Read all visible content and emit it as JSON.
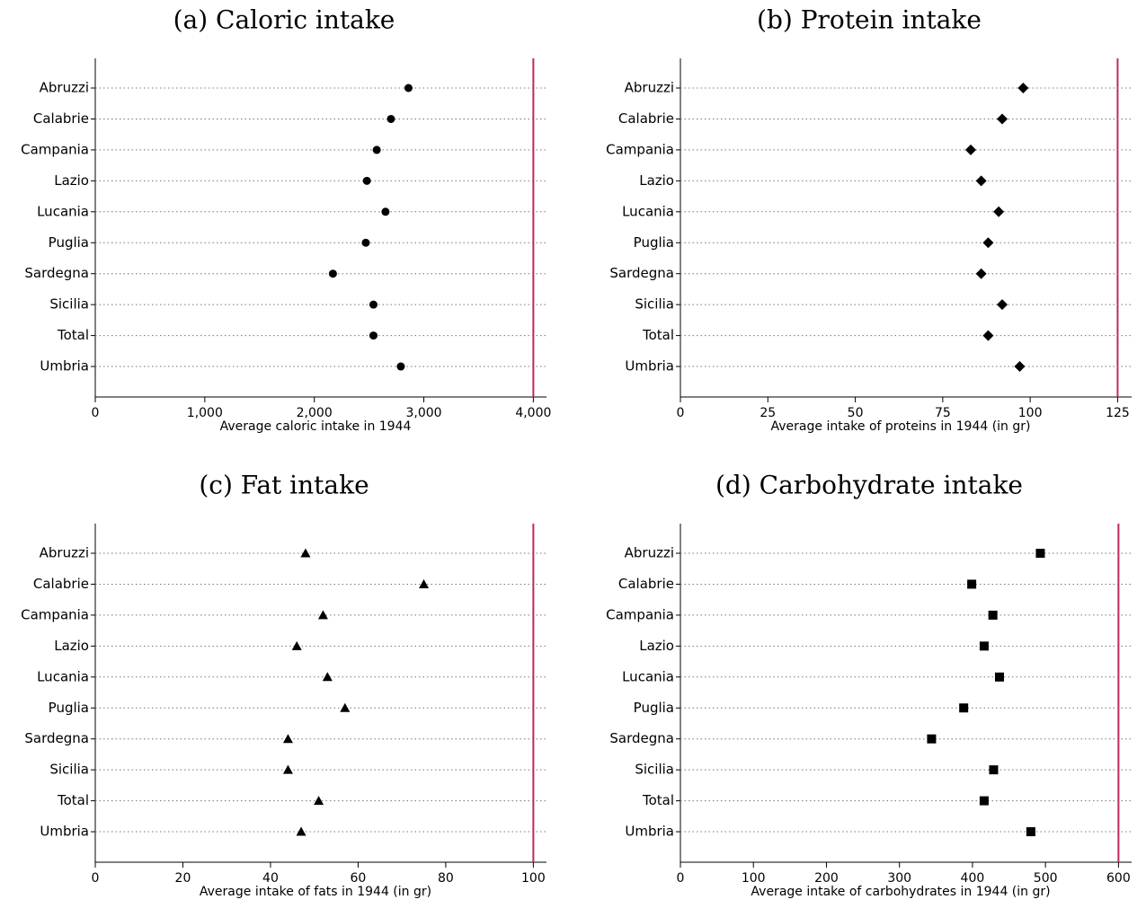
{
  "chart_data": [
    {
      "type": "dot",
      "title": "(a) Caloric intake",
      "x_label": "Average caloric intake in 1944",
      "marker": "circle",
      "color": "#000000",
      "categories": [
        "Abruzzi",
        "Calabrie",
        "Campania",
        "Lazio",
        "Lucania",
        "Puglia",
        "Sardegna",
        "Sicilia",
        "Total",
        "Umbria"
      ],
      "values": [
        2860,
        2700,
        2570,
        2480,
        2650,
        2470,
        2170,
        2540,
        2540,
        2790
      ],
      "xlim": [
        0,
        4120
      ],
      "xticks": [
        0,
        {
          "value": 1000,
          "label": "1,000"
        },
        {
          "value": 2000,
          "label": "2,000"
        },
        {
          "value": 3000,
          "label": "3,000"
        },
        {
          "value": 4000,
          "label": "4,000"
        }
      ],
      "ref_line": 4000,
      "ref_color": "#c0285a"
    },
    {
      "type": "dot",
      "title": "(b) Protein intake",
      "x_label": "Average intake of proteins in 1944 (in gr)",
      "marker": "diamond",
      "color": "#000000",
      "categories": [
        "Abruzzi",
        "Calabrie",
        "Campania",
        "Lazio",
        "Lucania",
        "Puglia",
        "Sardegna",
        "Sicilia",
        "Total",
        "Umbria"
      ],
      "values": [
        98,
        92,
        83,
        86,
        91,
        88,
        86,
        92,
        88,
        97
      ],
      "xlim": [
        0,
        129
      ],
      "xticks": [
        0,
        25,
        50,
        75,
        100,
        125
      ],
      "ref_line": 125,
      "ref_color": "#c0285a"
    },
    {
      "type": "dot",
      "title": "(c) Fat intake",
      "x_label": "Average intake of fats in 1944 (in gr)",
      "marker": "triangle",
      "color": "#000000",
      "categories": [
        "Abruzzi",
        "Calabrie",
        "Campania",
        "Lazio",
        "Lucania",
        "Puglia",
        "Sardegna",
        "Sicilia",
        "Total",
        "Umbria"
      ],
      "values": [
        48,
        75,
        52,
        46,
        53,
        57,
        44,
        44,
        51,
        47
      ],
      "xlim": [
        0,
        103
      ],
      "xticks": [
        0,
        20,
        40,
        60,
        80,
        100
      ],
      "ref_line": 100,
      "ref_color": "#c0285a"
    },
    {
      "type": "dot",
      "title": "(d) Carbohydrate intake",
      "x_label": "Average intake of carbohydrates in 1944 (in gr)",
      "marker": "square",
      "color": "#000000",
      "categories": [
        "Abruzzi",
        "Calabrie",
        "Campania",
        "Lazio",
        "Lucania",
        "Puglia",
        "Sardegna",
        "Sicilia",
        "Total",
        "Umbria"
      ],
      "values": [
        493,
        399,
        428,
        416,
        437,
        388,
        344,
        429,
        416,
        480
      ],
      "xlim": [
        0,
        618
      ],
      "xticks": [
        0,
        100,
        200,
        300,
        400,
        500,
        600
      ],
      "ref_line": 600,
      "ref_color": "#c0285a"
    }
  ]
}
